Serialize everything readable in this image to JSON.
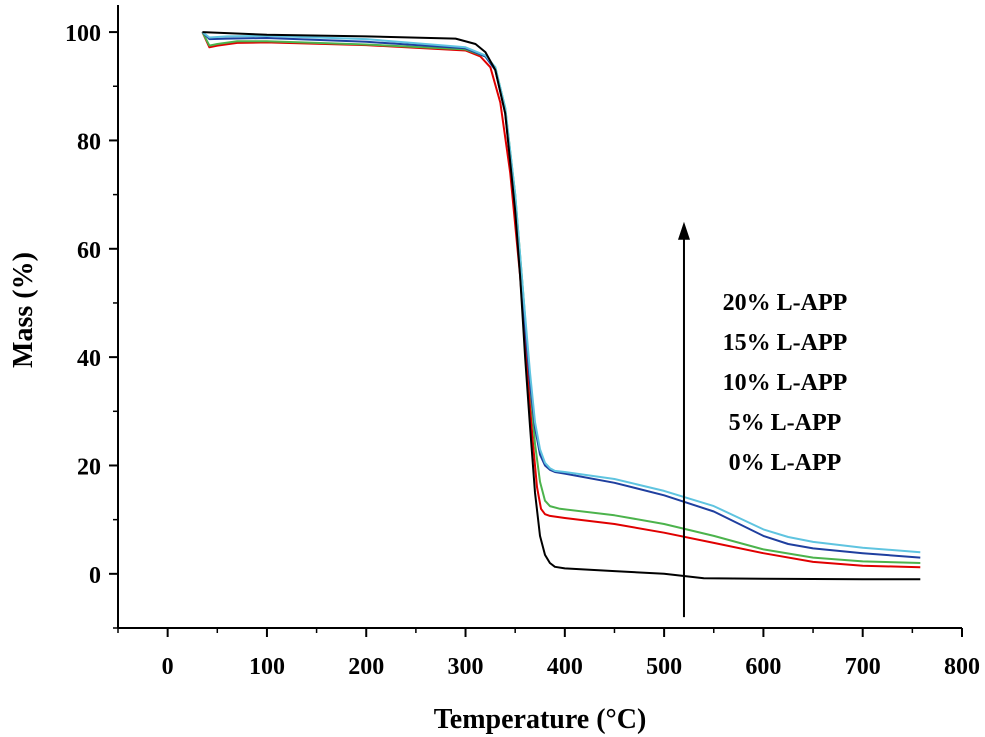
{
  "chart_data": {
    "type": "line",
    "title": "",
    "xlabel": "Temperature (°C)",
    "ylabel": "Mass (%)",
    "xlim": [
      -50,
      800
    ],
    "ylim": [
      -10,
      105
    ],
    "xticks": [
      0,
      100,
      200,
      300,
      400,
      500,
      600,
      700,
      800
    ],
    "yticks": [
      0,
      20,
      40,
      60,
      80,
      100
    ],
    "grid": false,
    "legend_position": "right, stacked along an upward arrow",
    "legend_labels": [
      "20% L-APP",
      "15% L-APP",
      "10% L-APP",
      "5% L-APP",
      "0% L-APP"
    ],
    "series": [
      {
        "name": "0% L-APP",
        "color": "#000000",
        "x": [
          35,
          100,
          200,
          290,
          310,
          320,
          330,
          340,
          350,
          355,
          360,
          365,
          370,
          375,
          380,
          385,
          390,
          400,
          450,
          500,
          540,
          600,
          700,
          758
        ],
        "y": [
          100,
          99.5,
          99.2,
          98.8,
          97.8,
          96.3,
          93,
          85,
          67,
          55,
          40,
          27,
          15,
          7,
          3.5,
          2,
          1.3,
          1,
          0.5,
          0,
          -0.8,
          -0.9,
          -1,
          -1
        ]
      },
      {
        "name": "5% L-APP",
        "color": "#e00000",
        "x": [
          35,
          42,
          50,
          70,
          100,
          200,
          300,
          315,
          325,
          335,
          345,
          355,
          362,
          368,
          372,
          376,
          380,
          385,
          400,
          450,
          500,
          550,
          600,
          650,
          700,
          758
        ],
        "y": [
          100,
          97.2,
          97.5,
          98,
          98.1,
          97.6,
          96.6,
          95.5,
          93.5,
          87,
          74,
          55,
          38,
          24,
          16,
          12,
          11,
          10.7,
          10.3,
          9.2,
          7.6,
          5.7,
          3.8,
          2.2,
          1.5,
          1.2
        ]
      },
      {
        "name": "10% L-APP",
        "color": "#4cb34c",
        "x": [
          35,
          42,
          50,
          70,
          100,
          200,
          300,
          320,
          330,
          340,
          350,
          358,
          365,
          370,
          375,
          380,
          385,
          395,
          450,
          500,
          550,
          600,
          650,
          700,
          758
        ],
        "y": [
          100,
          97.5,
          97.8,
          98.3,
          98.3,
          97.7,
          96.8,
          95.5,
          93.5,
          86,
          70,
          52,
          35,
          24,
          17,
          13.5,
          12.5,
          12,
          10.8,
          9.2,
          7,
          4.5,
          3,
          2.3,
          2
        ]
      },
      {
        "name": "15% L-APP",
        "color": "#1f3f9f",
        "x": [
          35,
          42,
          60,
          100,
          200,
          300,
          320,
          330,
          340,
          350,
          358,
          365,
          370,
          375,
          380,
          385,
          390,
          400,
          450,
          500,
          550,
          600,
          625,
          650,
          700,
          758
        ],
        "y": [
          100,
          98.7,
          98.8,
          98.9,
          98.2,
          97,
          95.5,
          93,
          85,
          68,
          50,
          35,
          27,
          22,
          20,
          19.2,
          18.8,
          18.5,
          16.8,
          14.5,
          11.5,
          7,
          5.5,
          4.7,
          3.8,
          3
        ]
      },
      {
        "name": "20% L-APP",
        "color": "#5fc4e0",
        "x": [
          35,
          42,
          60,
          100,
          200,
          300,
          320,
          330,
          340,
          350,
          358,
          365,
          370,
          375,
          380,
          385,
          390,
          400,
          450,
          500,
          550,
          600,
          625,
          650,
          700,
          758
        ],
        "y": [
          100,
          99,
          99.2,
          99.3,
          98.7,
          97.2,
          95.7,
          93.5,
          86,
          70,
          52,
          37,
          28,
          23,
          20.5,
          19.5,
          19,
          18.8,
          17.5,
          15.3,
          12.5,
          8.2,
          6.8,
          5.9,
          4.8,
          4
        ]
      }
    ],
    "annotation": {
      "type": "arrow",
      "direction": "up",
      "x": 520,
      "y_start": -8,
      "y_end": 65
    }
  }
}
